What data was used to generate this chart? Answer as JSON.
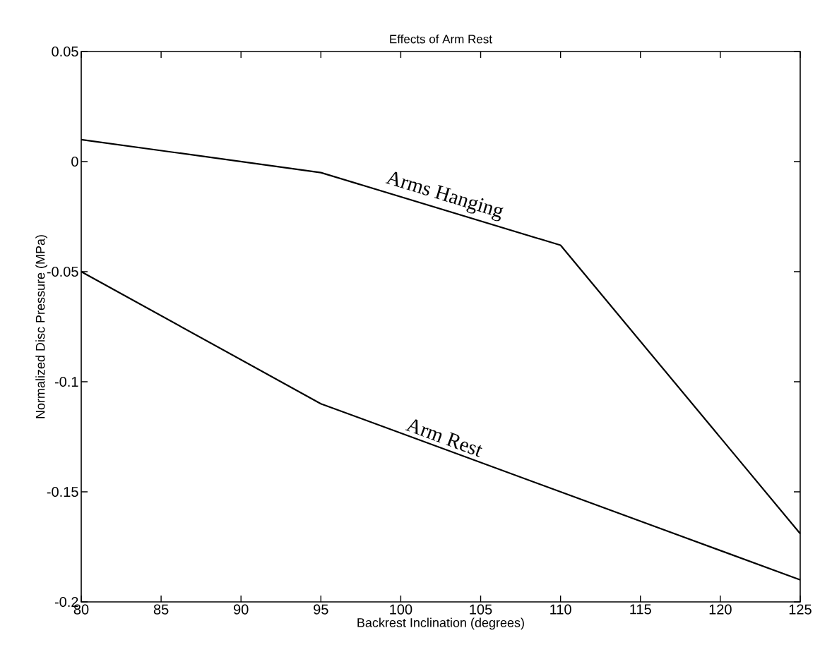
{
  "chart_data": {
    "type": "line",
    "title": "Effects of Arm Rest",
    "xlabel": "Backrest Inclination (degrees)",
    "ylabel": "Normalized Disc Pressure (MPa)",
    "x": [
      80,
      95,
      110,
      125
    ],
    "series": [
      {
        "name": "Arms Hanging",
        "color": "#000000",
        "values": [
          0.01,
          -0.005,
          -0.038,
          -0.169
        ]
      },
      {
        "name": "Arm Rest",
        "color": "#000000",
        "values": [
          -0.05,
          -0.11,
          -0.15,
          -0.19
        ]
      }
    ],
    "xlim": [
      80,
      125
    ],
    "ylim": [
      -0.2,
      0.05
    ],
    "xticks": [
      80,
      85,
      90,
      95,
      100,
      105,
      110,
      115,
      120,
      125
    ],
    "yticks": [
      -0.2,
      -0.15,
      -0.1,
      -0.05,
      0,
      0.05
    ]
  }
}
